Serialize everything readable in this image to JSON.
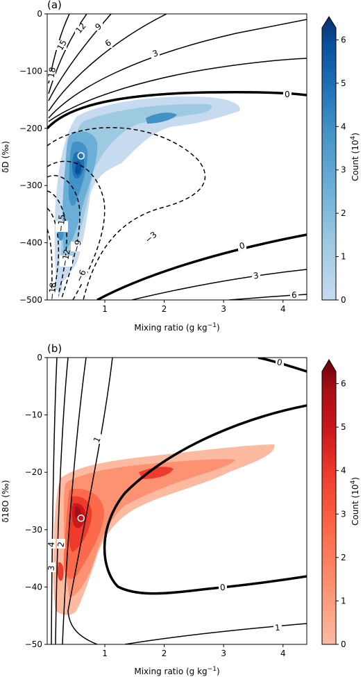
{
  "chart_data": [
    {
      "type": "heatmap",
      "panel_label": "(a)",
      "xlabel": "Mixing ratio (g kg",
      "xlabel_sup": "−1",
      "xlabel_end": ")",
      "ylabel": "δD (‰)",
      "xlim": [
        0.03,
        4.4
      ],
      "ylim": [
        -500,
        0
      ],
      "xticks": [
        1,
        2,
        3,
        4
      ],
      "xtick_labels": [
        "1",
        "2",
        "3",
        "4"
      ],
      "yticks": [
        0,
        -100,
        -200,
        -300,
        -400,
        -500
      ],
      "ytick_labels": [
        "0",
        "−100",
        "−200",
        "−300",
        "−400",
        "−500"
      ],
      "colorbar": {
        "label": "Count (10",
        "label_sup": "4",
        "label_end": ")",
        "ticks": [
          0,
          1,
          2,
          3,
          4,
          5,
          6
        ],
        "tick_labels": [
          "0",
          "1",
          "2",
          "3",
          "4",
          "5",
          "6"
        ],
        "range": [
          0,
          6.6
        ],
        "colormap": [
          "#c6dbef",
          "#9ecae1",
          "#6baed6",
          "#4292c6",
          "#2171b5",
          "#08519c",
          "#08306b"
        ]
      },
      "marker": {
        "x": 0.6,
        "y": -248
      },
      "contour_labels": [
        "18",
        "15",
        "12",
        "9",
        "6",
        "3",
        "0",
        "0",
        "3",
        "6",
        "−3",
        "−6",
        "−9",
        "−12",
        "−15",
        "−18"
      ]
    },
    {
      "type": "heatmap",
      "panel_label": "(b)",
      "xlabel": "Mixing ratio (g kg",
      "xlabel_sup": "−1",
      "xlabel_end": ")",
      "ylabel": "δ18O (‰)",
      "xlim": [
        0.03,
        4.4
      ],
      "ylim": [
        -50,
        0
      ],
      "xticks": [
        1,
        2,
        3,
        4
      ],
      "xtick_labels": [
        "1",
        "2",
        "3",
        "4"
      ],
      "yticks": [
        0,
        -10,
        -20,
        -30,
        -40,
        -50
      ],
      "ytick_labels": [
        "0",
        "−10",
        "−20",
        "−30",
        "−40",
        "−50"
      ],
      "colorbar": {
        "label": "Count (10",
        "label_sup": "4",
        "label_end": ")",
        "ticks": [
          0,
          1,
          2,
          3,
          4,
          5,
          6
        ],
        "tick_labels": [
          "0",
          "1",
          "2",
          "3",
          "4",
          "5",
          "6"
        ],
        "range": [
          0,
          6.6
        ],
        "colormap": [
          "#fcbba1",
          "#fc9272",
          "#fb6a4a",
          "#ef3b2c",
          "#cb181d",
          "#a50f15",
          "#67000d"
        ]
      },
      "marker": {
        "x": 0.6,
        "y": -28
      },
      "contour_labels": [
        "0",
        "1",
        "2",
        "4",
        "3",
        "0",
        "1"
      ]
    }
  ]
}
